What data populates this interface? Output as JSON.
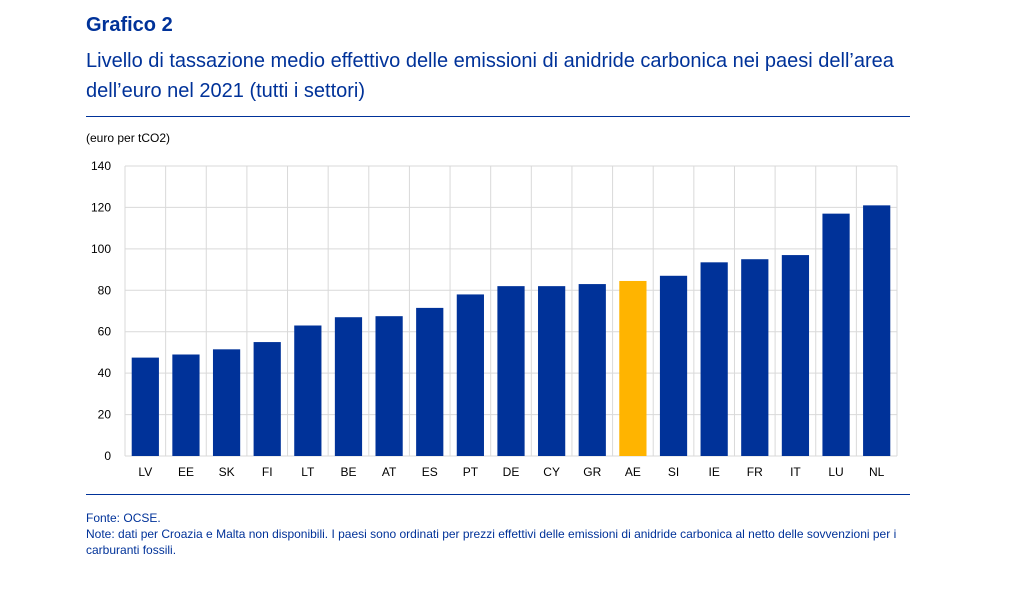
{
  "header": {
    "title": "Grafico 2",
    "subtitle": "Livello di tassazione medio effettivo delle emissioni di anidride carbonica nei paesi dell’area dell’euro nel 2021 (tutti i settori)"
  },
  "unit_label": "(euro per tCO2)",
  "footer": {
    "source": "Fonte: OCSE.",
    "note": "Note: dati per Croazia e Malta non disponibili. I paesi sono ordinati per prezzi effettivi delle emissioni di anidride carbonica al netto delle sovvenzioni per i carburanti fossili."
  },
  "colors": {
    "bar": "#003299",
    "highlight": "#ffb400",
    "text_accent": "#003299",
    "grid": "#d9d9d9"
  },
  "chart_data": {
    "type": "bar",
    "categories": [
      "LV",
      "EE",
      "SK",
      "FI",
      "LT",
      "BE",
      "AT",
      "ES",
      "PT",
      "DE",
      "CY",
      "GR",
      "AE",
      "SI",
      "IE",
      "FR",
      "IT",
      "LU",
      "NL"
    ],
    "values": [
      47.5,
      49,
      51.5,
      55,
      63,
      67,
      67.5,
      71.5,
      78,
      82,
      82,
      83,
      84.5,
      87,
      93.5,
      95,
      97,
      117,
      121
    ],
    "highlight_category": "AE",
    "ylim": [
      0,
      140
    ],
    "yticks": [
      0,
      20,
      40,
      60,
      80,
      100,
      120,
      140
    ],
    "title": "",
    "xlabel": "",
    "ylabel": "(euro per tCO2)",
    "grid": true,
    "legend": "none"
  }
}
